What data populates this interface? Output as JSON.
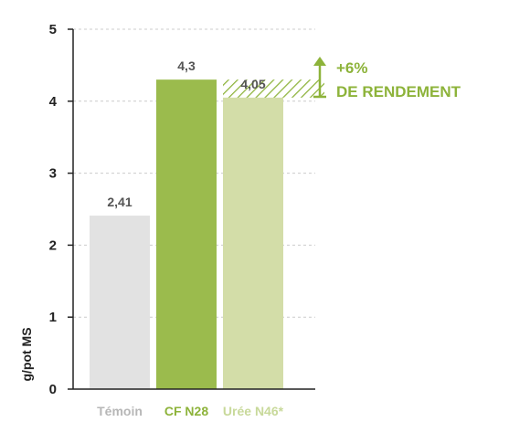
{
  "chart_data": {
    "type": "bar",
    "categories": [
      "Témoin",
      "CF N28",
      "Urée N46*"
    ],
    "values": [
      2.41,
      4.3,
      4.05
    ],
    "value_labels": [
      "2,41",
      "4,3",
      "4,05"
    ],
    "ylabel": "g/pot MS",
    "ylim": [
      0,
      5
    ],
    "yticks": [
      0,
      1,
      2,
      3,
      4,
      5
    ],
    "grid": true,
    "colors": {
      "bars": [
        "#e2e2e2",
        "#9bbb4d",
        "#d3dda8"
      ],
      "category_labels": [
        "#b7b7b7",
        "#8db33a",
        "#c8d99a"
      ],
      "accent": "#8db33a",
      "grid": "#cccccc",
      "axis": "#222222"
    },
    "annotation": {
      "line1": "+6%",
      "line2": "DE RENDEMENT",
      "icon": "arrow-up-icon"
    }
  }
}
